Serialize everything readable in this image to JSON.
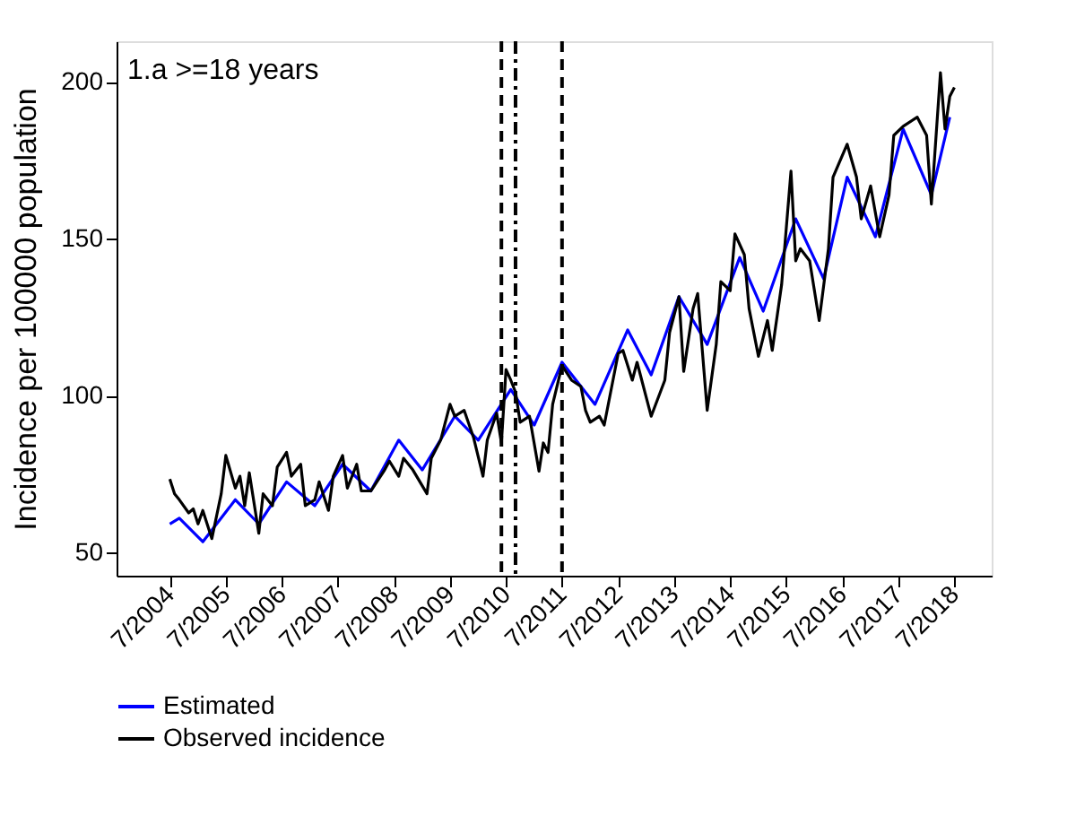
{
  "chart_data": {
    "type": "line",
    "ylabel": "Incidence per 100000 population",
    "annotations": [
      "1.a  >=18 years"
    ],
    "xlim": [
      "2003-07-20",
      "2019-03-01"
    ],
    "ylim": [
      42.7,
      213
    ],
    "xticks": [
      {
        "value": "2004-07",
        "label": "7/2004"
      },
      {
        "value": "2005-07",
        "label": "7/2005"
      },
      {
        "value": "2006-07",
        "label": "7/2006"
      },
      {
        "value": "2007-07",
        "label": "7/2007"
      },
      {
        "value": "2008-07",
        "label": "7/2008"
      },
      {
        "value": "2009-07",
        "label": "7/2009"
      },
      {
        "value": "2010-07",
        "label": "7/2010"
      },
      {
        "value": "2011-07",
        "label": "7/2011"
      },
      {
        "value": "2012-07",
        "label": "7/2012"
      },
      {
        "value": "2013-07",
        "label": "7/2013"
      },
      {
        "value": "2014-07",
        "label": "7/2014"
      },
      {
        "value": "2015-07",
        "label": "7/2015"
      },
      {
        "value": "2016-07",
        "label": "7/2016"
      },
      {
        "value": "2017-07",
        "label": "7/2017"
      },
      {
        "value": "2018-07",
        "label": "7/2018"
      }
    ],
    "yticks": [
      50,
      100,
      150,
      200
    ],
    "grid": false,
    "legend": "bottom",
    "marker": "none",
    "line_style": "solid",
    "ref_lines": [
      {
        "axis": "x",
        "value": "2010-06",
        "color": "#000000",
        "line_style": "dashed"
      },
      {
        "axis": "x",
        "value": "2010-09",
        "color": "#000000",
        "line_style": "dashdot"
      },
      {
        "axis": "x",
        "value": "2011-07",
        "color": "#000000",
        "line_style": "dashed"
      }
    ],
    "series": [
      {
        "name": "Estimated",
        "color": "#0000ff",
        "x": [
          "2004-07",
          "2004-09",
          "2005-02",
          "2005-09",
          "2006-02",
          "2006-08",
          "2007-02",
          "2007-08",
          "2008-02",
          "2008-08",
          "2009-01",
          "2009-08",
          "2010-01",
          "2010-08",
          "2011-01",
          "2011-07",
          "2012-02",
          "2012-09",
          "2013-02",
          "2013-08",
          "2014-02",
          "2014-09",
          "2015-02",
          "2015-09",
          "2016-03",
          "2016-08",
          "2017-02",
          "2017-08",
          "2018-02",
          "2018-06"
        ],
        "values": [
          59.2,
          61,
          53.5,
          66.9,
          59.2,
          72.6,
          65,
          78.2,
          69.7,
          85.9,
          76.4,
          93.5,
          85.9,
          102,
          90.7,
          110.7,
          97.3,
          121,
          106.7,
          131.6,
          116.4,
          144.1,
          127,
          156.4,
          137.3,
          169.7,
          150.7,
          185,
          164,
          188.8
        ]
      },
      {
        "name": "Observed incidence",
        "color": "#000000",
        "x": [
          "2004-07",
          "2004-08",
          "2004-09",
          "2004-11",
          "2004-12",
          "2005-01",
          "2005-02",
          "2005-04",
          "2005-06",
          "2005-07",
          "2005-09",
          "2005-10",
          "2005-11",
          "2005-12",
          "2006-02",
          "2006-03",
          "2006-05",
          "2006-06",
          "2006-08",
          "2006-09",
          "2006-11",
          "2006-12",
          "2007-02",
          "2007-03",
          "2007-05",
          "2007-06",
          "2007-08",
          "2007-09",
          "2007-11",
          "2007-12",
          "2008-02",
          "2008-05",
          "2008-06",
          "2008-08",
          "2008-09",
          "2008-11",
          "2009-02",
          "2009-03",
          "2009-05",
          "2009-07",
          "2009-08",
          "2009-10",
          "2009-12",
          "2010-02",
          "2010-03",
          "2010-05",
          "2010-06",
          "2010-07",
          "2010-08",
          "2010-09",
          "2010-10",
          "2010-12",
          "2011-02",
          "2011-03",
          "2011-04",
          "2011-05",
          "2011-07",
          "2011-09",
          "2011-11",
          "2011-12",
          "2012-01",
          "2012-03",
          "2012-04",
          "2012-07",
          "2012-08",
          "2012-10",
          "2012-11",
          "2013-02",
          "2013-05",
          "2013-06",
          "2013-08",
          "2013-09",
          "2013-11",
          "2013-12",
          "2014-02",
          "2014-04",
          "2014-05",
          "2014-07",
          "2014-08",
          "2014-10",
          "2014-11",
          "2015-01",
          "2015-03",
          "2015-04",
          "2015-06",
          "2015-08",
          "2015-09",
          "2015-10",
          "2015-12",
          "2016-02",
          "2016-04",
          "2016-05",
          "2016-08",
          "2016-10",
          "2016-11",
          "2017-01",
          "2017-03",
          "2017-05",
          "2017-06",
          "2017-08",
          "2017-11",
          "2018-01",
          "2018-02",
          "2018-04",
          "2018-05",
          "2018-06",
          "2018-07"
        ],
        "values": [
          73.5,
          68.8,
          66.9,
          62.7,
          64,
          59.2,
          63.5,
          54.5,
          68.8,
          81,
          70.6,
          74.4,
          65,
          75.5,
          56.2,
          68.8,
          65,
          77.3,
          82,
          74.4,
          78.2,
          65,
          66.9,
          72.6,
          63.5,
          74.4,
          81,
          70.6,
          78.2,
          69.7,
          69.7,
          76.4,
          79.2,
          74.4,
          80.1,
          76.4,
          68.8,
          80.1,
          85.9,
          97.3,
          93.5,
          95.4,
          86.8,
          74.4,
          85.9,
          94.5,
          85,
          108.4,
          105,
          101.2,
          91.6,
          93.5,
          76,
          85,
          82,
          97.3,
          109.7,
          105,
          103,
          95.4,
          91.6,
          93.5,
          90.7,
          113.5,
          114.5,
          105,
          110.7,
          93.5,
          105,
          120.2,
          131.6,
          107.8,
          127.8,
          132.6,
          95.4,
          116.4,
          136.4,
          133.5,
          151.6,
          145,
          127.8,
          112.6,
          124,
          114.5,
          135.4,
          171.6,
          143,
          146.9,
          143,
          124,
          146.9,
          169.7,
          180.2,
          169.7,
          156.4,
          166.9,
          150.7,
          164,
          183,
          185.9,
          188.8,
          183,
          161.1,
          203,
          185,
          195.4,
          198.3
        ]
      }
    ]
  }
}
